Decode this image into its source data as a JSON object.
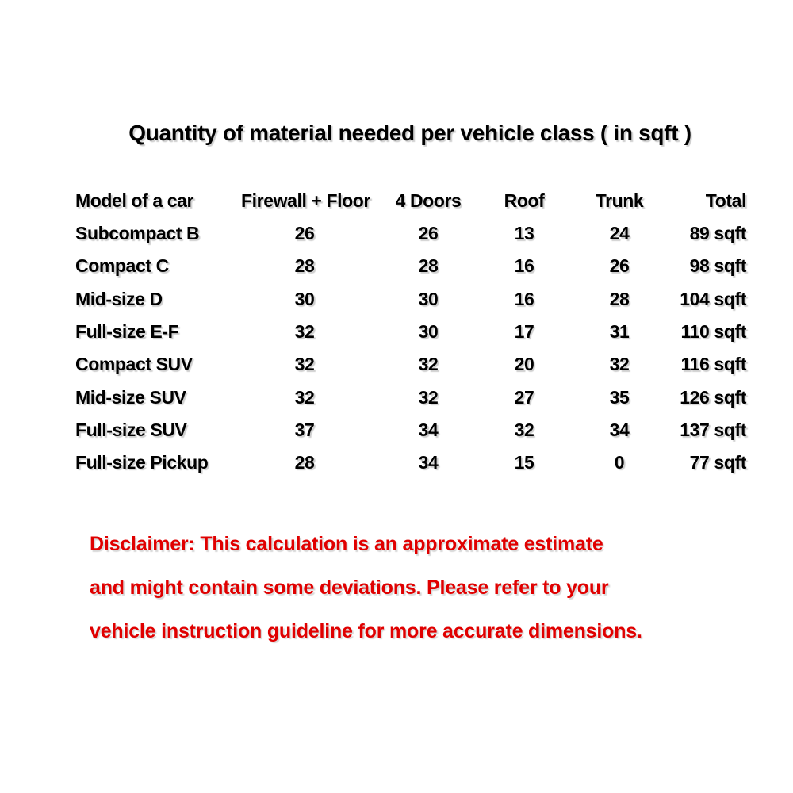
{
  "title": "Quantity of material needed per vehicle class ( in sqft )",
  "table": {
    "headers": [
      "Model of a car",
      "Firewall + Floor",
      "4 Doors",
      "Roof",
      "Trunk",
      "Total"
    ],
    "rows": [
      [
        "Subcompact B",
        "26",
        "26",
        "13",
        "24",
        "89 sqft"
      ],
      [
        "Compact C",
        "28",
        "28",
        "16",
        "26",
        "98 sqft"
      ],
      [
        "Mid-size D",
        "30",
        "30",
        "16",
        "28",
        "104 sqft"
      ],
      [
        "Full-size E-F",
        "32",
        "30",
        "17",
        "31",
        "110 sqft"
      ],
      [
        "Compact SUV",
        "32",
        "32",
        "20",
        "32",
        "116 sqft"
      ],
      [
        "Mid-size SUV",
        "32",
        "32",
        "27",
        "35",
        "126 sqft"
      ],
      [
        "Full-size SUV",
        "37",
        "34",
        "32",
        "34",
        "137 sqft"
      ],
      [
        "Full-size Pickup",
        "28",
        "34",
        "15",
        "0",
        "77 sqft"
      ]
    ]
  },
  "disclaimer": {
    "color": "#e00000",
    "lines": [
      "Disclaimer: This calculation is an approximate estimate",
      "and might contain some deviations. Please refer to your",
      "vehicle instruction guideline for more accurate dimensions."
    ]
  }
}
